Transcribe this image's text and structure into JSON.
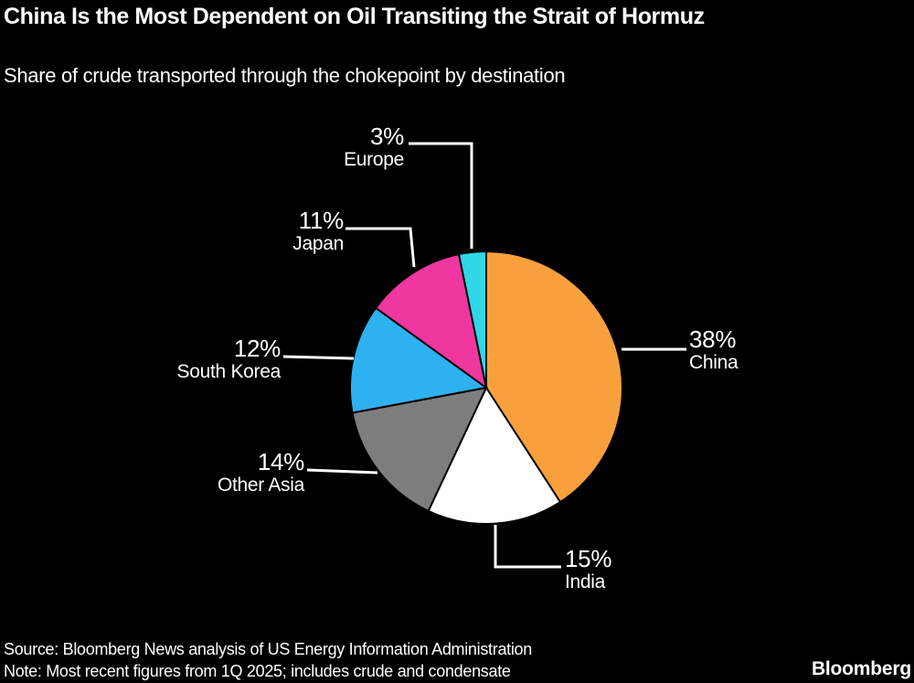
{
  "header": {
    "title": "China Is the Most Dependent on Oil Transiting the Strait of Hormuz",
    "subtitle": "Share of crude transported through the chokepoint by destination"
  },
  "chart_data": {
    "type": "pie",
    "title": "China Is the Most Dependent on Oil Transiting the Strait of Hormuz",
    "subtitle": "Share of crude transported through the chokepoint by destination",
    "unit": "%",
    "direction": "clockwise",
    "start_angle_deg": 0,
    "background_color": "#000000",
    "label_color": "#FFFFFF",
    "slice_border_color": "#000000",
    "slices": [
      {
        "label": "China",
        "value": 38,
        "pct": "38%",
        "color": "#F8A13C"
      },
      {
        "label": "India",
        "value": 15,
        "pct": "15%",
        "color": "#FFFFFF"
      },
      {
        "label": "Other Asia",
        "value": 14,
        "pct": "14%",
        "color": "#7D7D7D"
      },
      {
        "label": "South Korea",
        "value": 12,
        "pct": "12%",
        "color": "#2EB1F0"
      },
      {
        "label": "Japan",
        "value": 11,
        "pct": "11%",
        "color": "#F0379F"
      },
      {
        "label": "Europe",
        "value": 3,
        "pct": "3%",
        "color": "#2FD7E7"
      }
    ]
  },
  "footer": {
    "source": "Source: Bloomberg News analysis of US Energy Information Administration",
    "note": "Note: Most recent figures from 1Q 2025; includes crude and condensate",
    "logo": "Bloomberg"
  }
}
